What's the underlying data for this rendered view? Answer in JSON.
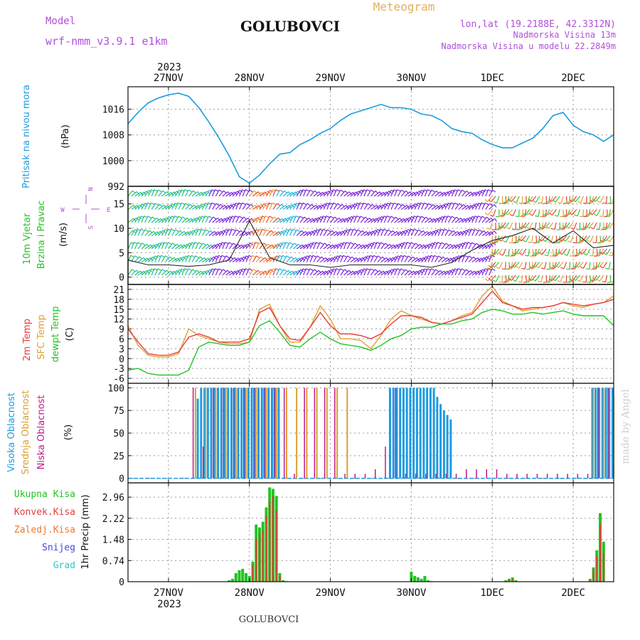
{
  "header": {
    "model_label": "Model",
    "model_name": "wrf-nmm_v3.9.1 e1km",
    "station": "GOLUBOVCI",
    "product": "Meteogram",
    "lonlat": "lon,lat (19.2188E, 42.3312N)",
    "altitude": "Nadmorska Visina 13m",
    "model_altitude": "Nadmorska Visina u modelu 22.2849m",
    "footer_station": "GOLUBOVCI",
    "watermark": "made by Angel"
  },
  "colors": {
    "pressure": "#1e9be0",
    "temp2m": "#e83c3c",
    "sfc_temp": "#e0a030",
    "dewpoint": "#22c422",
    "high_cloud": "#1e9be0",
    "mid_cloud": "#d9a030",
    "low_cloud": "#c0188c",
    "precip_total": "#22c422",
    "precip_conv": "#e83c3c",
    "precip_frozen": "#f07830",
    "snow": "#4646e6",
    "graupel": "#32c8c8",
    "wind_purple": "#7a28d8",
    "wind_cyan": "#22b4d8",
    "wind_orange": "#e8a030",
    "wind_green": "#30c83c",
    "wind_red": "#e84040"
  },
  "time_axis": {
    "day_labels": [
      "27NOV",
      "28NOV",
      "29NOV",
      "30NOV",
      "1DEC",
      "2DEC"
    ],
    "year_label": "2023",
    "start": "26NOV 12UTC",
    "end": "2DEC 12UTC"
  },
  "wind_legend": {
    "w": "W",
    "e": "E",
    "n": "N",
    "s": "S"
  },
  "chart_data": [
    {
      "type": "line",
      "title": "",
      "ylabel": "Pritisak na nivou mora",
      "unit": "(hPa)",
      "y_ticks": [
        "1016",
        "1008",
        "1000",
        "992"
      ],
      "y_tick_values": [
        1016,
        1008,
        1000,
        992
      ],
      "ylim": [
        992,
        1023
      ],
      "x_hours": [
        0,
        3,
        6,
        9,
        12,
        15,
        18,
        21,
        24,
        27,
        30,
        33,
        36,
        39,
        42,
        45,
        48,
        51,
        54,
        57,
        60,
        63,
        66,
        69,
        72,
        75,
        78,
        81,
        84,
        87,
        90,
        93,
        96,
        99,
        102,
        105,
        108,
        111,
        114,
        117,
        120,
        123,
        126,
        129,
        132,
        135,
        138,
        141,
        144
      ],
      "series": [
        {
          "name": "Pritisak na nivou mora",
          "values": [
            1011.5,
            1015,
            1018,
            1019.5,
            1020.5,
            1021,
            1020,
            1016.5,
            1012,
            1007,
            1001.5,
            995,
            993,
            995.5,
            999,
            1002,
            1002.5,
            1005,
            1006.5,
            1008.5,
            1010,
            1012.5,
            1014.5,
            1015.5,
            1016.5,
            1017.5,
            1016.5,
            1016.5,
            1016,
            1014.5,
            1014,
            1012.5,
            1010,
            1009,
            1008.5,
            1006.5,
            1005,
            1004,
            1004,
            1005.5,
            1007,
            1010,
            1014,
            1015,
            1011,
            1009,
            1008,
            1006,
            1008
          ]
        }
      ]
    },
    {
      "type": "line",
      "title": "",
      "ylabel": "10m Vjetar Brzina i Pravac",
      "unit": "(m/s)",
      "y_ticks": [
        "0",
        "5",
        "10",
        "15"
      ],
      "y_tick_values": [
        0,
        5,
        10,
        15
      ],
      "ylim": [
        -1.5,
        18.6
      ],
      "x_hours": [
        0,
        6,
        12,
        18,
        24,
        30,
        36,
        42,
        48,
        54,
        60,
        66,
        72,
        78,
        84,
        90,
        96,
        102,
        108,
        114,
        120,
        126,
        132,
        138,
        144
      ],
      "series": [
        {
          "name": "wind speed",
          "values": [
            3.5,
            2.5,
            2.5,
            2.2,
            2.5,
            3.5,
            11.5,
            4,
            2.5,
            2.5,
            2,
            2.5,
            2.5,
            2.5,
            2.5,
            2,
            3,
            5.5,
            7.5,
            8.5,
            10,
            7,
            9.5,
            6,
            6.5
          ]
        }
      ]
    },
    {
      "type": "line",
      "title": "",
      "ylabel": "2m Temp / SFC Temp / dewpt Temp",
      "unit": "(C)",
      "y_ticks": [
        "-6",
        "-3",
        "0",
        "3",
        "6",
        "9",
        "12",
        "15",
        "18",
        "21"
      ],
      "y_tick_values": [
        -6,
        -3,
        0,
        3,
        6,
        9,
        12,
        15,
        18,
        21
      ],
      "ylim": [
        -7.5,
        22.5
      ],
      "x_hours": [
        0,
        3,
        6,
        9,
        12,
        15,
        18,
        21,
        24,
        27,
        30,
        33,
        36,
        39,
        42,
        45,
        48,
        51,
        54,
        57,
        60,
        63,
        66,
        69,
        72,
        75,
        78,
        81,
        84,
        87,
        90,
        93,
        96,
        99,
        102,
        105,
        108,
        111,
        114,
        117,
        120,
        123,
        126,
        129,
        132,
        135,
        138,
        141,
        144
      ],
      "series": [
        {
          "name": "2m Temp",
          "values": [
            9,
            5,
            1.5,
            1,
            1,
            2,
            6.5,
            7.5,
            6.5,
            5,
            5,
            5,
            6,
            14,
            15.5,
            10,
            6,
            5.5,
            9.5,
            14,
            10,
            7.5,
            7.5,
            7,
            6,
            7.5,
            10.5,
            13,
            13,
            12.5,
            11,
            10.5,
            11.5,
            12.5,
            13.5,
            17,
            20.5,
            17,
            16,
            15,
            15.5,
            15.5,
            16,
            17,
            16.5,
            16,
            16.5,
            17,
            18
          ]
        },
        {
          "name": "SFC Temp",
          "values": [
            10,
            4,
            1,
            0.5,
            0.5,
            1.5,
            9,
            7,
            6,
            5,
            4.5,
            4.5,
            5,
            15,
            16.5,
            10,
            5,
            5,
            9.5,
            16,
            12,
            6,
            6,
            5.5,
            3,
            7,
            12,
            14.5,
            13,
            12,
            11,
            10.5,
            11.5,
            13,
            14,
            19,
            22,
            17.5,
            16,
            14.5,
            15,
            15.5,
            16,
            17,
            16,
            15.5,
            16.5,
            17,
            19
          ]
        },
        {
          "name": "dewpt Temp",
          "values": [
            -3.5,
            -3,
            -4.5,
            -5,
            -5,
            -5,
            -3.5,
            3.5,
            5,
            4.5,
            4,
            4,
            5,
            10,
            11.5,
            8,
            4,
            3.5,
            6,
            8,
            6,
            4.5,
            4,
            3.5,
            2.5,
            4,
            6,
            7,
            9,
            9.5,
            9.5,
            10.5,
            10.5,
            11.5,
            12,
            14,
            15,
            14.5,
            13.5,
            13.5,
            14,
            13.5,
            14,
            14.5,
            13.5,
            13,
            13,
            13,
            10
          ]
        }
      ]
    },
    {
      "type": "bar",
      "title": "",
      "ylabel": "Visoka Oblacnost / Srednja Oblacnost / Niska Oblacnost",
      "unit": "(%)",
      "y_ticks": [
        "0",
        "25",
        "50",
        "75",
        "100"
      ],
      "y_tick_values": [
        0,
        25,
        50,
        75,
        100
      ],
      "ylim": [
        -5,
        105
      ],
      "series": [
        {
          "name": "Visoka Oblacnost",
          "hours": [
            21,
            22,
            23,
            24,
            25,
            26,
            27,
            28,
            29,
            30,
            31,
            32,
            33,
            34,
            35,
            36,
            37,
            38,
            39,
            40,
            41,
            42,
            43,
            44,
            45,
            78,
            79,
            80,
            81,
            82,
            83,
            84,
            85,
            86,
            87,
            88,
            89,
            90,
            91,
            92,
            93,
            94,
            95,
            96,
            138,
            139,
            140,
            141,
            142,
            143,
            144
          ],
          "values": [
            88,
            100,
            100,
            100,
            100,
            100,
            100,
            100,
            100,
            100,
            100,
            100,
            100,
            100,
            100,
            100,
            100,
            100,
            100,
            100,
            100,
            100,
            100,
            100,
            100,
            100,
            100,
            100,
            100,
            100,
            100,
            100,
            100,
            100,
            100,
            100,
            100,
            100,
            100,
            90,
            82,
            75,
            70,
            65,
            100,
            100,
            100,
            100,
            100,
            100,
            100
          ]
        },
        {
          "name": "Srednja Oblacnost",
          "hours": [
            20,
            23,
            26,
            29,
            32,
            35,
            38,
            41,
            44,
            47,
            50,
            53,
            56,
            59,
            62,
            65,
            138,
            141,
            144
          ],
          "values": [
            100,
            100,
            100,
            100,
            100,
            100,
            100,
            100,
            100,
            100,
            100,
            100,
            100,
            100,
            100,
            100,
            100,
            100,
            92
          ]
        },
        {
          "name": "Niska Oblacnost",
          "hours": [
            19,
            22,
            25,
            28,
            31,
            34,
            37,
            40,
            43,
            46,
            49,
            52,
            55,
            58,
            61,
            64,
            67,
            70,
            73,
            76,
            79,
            82,
            85,
            88,
            91,
            94,
            97,
            100,
            103,
            106,
            109,
            112,
            115,
            118,
            121,
            124,
            127,
            130,
            133,
            136,
            139,
            142
          ],
          "values": [
            100,
            35,
            100,
            100,
            100,
            100,
            100,
            100,
            100,
            100,
            5,
            100,
            100,
            100,
            100,
            5,
            5,
            5,
            10,
            35,
            100,
            5,
            5,
            5,
            5,
            5,
            5,
            10,
            10,
            10,
            10,
            5,
            5,
            5,
            5,
            5,
            5,
            5,
            5,
            5,
            100,
            100
          ]
        }
      ]
    },
    {
      "type": "bar",
      "title": "",
      "ylabel": "1hr Precip",
      "unit": "(mm)",
      "y_ticks": [
        "0",
        "0.74",
        "1.48",
        "2.22",
        "2.96"
      ],
      "y_tick_values": [
        0,
        0.74,
        1.48,
        2.22,
        2.96
      ],
      "ylim": [
        0,
        3.46
      ],
      "series": [
        {
          "name": "Ukupna Kisa",
          "hours": [
            30,
            31,
            32,
            33,
            34,
            35,
            36,
            37,
            38,
            39,
            40,
            41,
            42,
            43,
            44,
            45,
            46,
            47,
            48,
            84,
            85,
            86,
            87,
            88,
            89,
            90,
            112,
            113,
            114,
            115,
            137,
            138,
            139,
            140,
            141
          ],
          "values": [
            0.05,
            0.1,
            0.3,
            0.4,
            0.45,
            0.3,
            0.2,
            0.7,
            2,
            1.9,
            2.1,
            2.6,
            3.3,
            3.25,
            3,
            0.3,
            0.05,
            0.02,
            0.01,
            0.35,
            0.2,
            0.15,
            0.1,
            0.2,
            0.05,
            0.02,
            0.05,
            0.1,
            0.15,
            0.05,
            0.1,
            0.5,
            1.1,
            2.4,
            1.4
          ]
        },
        {
          "name": "Konvek.Kisa",
          "hours": [
            37,
            38,
            39,
            40,
            41,
            42,
            43,
            44,
            45,
            113,
            114,
            137,
            138,
            139,
            140,
            141
          ],
          "values": [
            0.6,
            1.5,
            1.7,
            1.8,
            2.3,
            2.8,
            3,
            2.5,
            0.2,
            0.1,
            0.1,
            0.05,
            0.4,
            0.9,
            2,
            1
          ]
        }
      ]
    }
  ],
  "legend_labels": {
    "precip": [
      "Ukupna Kisa",
      "Konvek.Kisa",
      "Zaledj.Kisa",
      "Snijeg",
      "Grad"
    ],
    "cloud": [
      "Visoka Oblacnost",
      "Srednja Oblacnost",
      "Niska Oblacnost"
    ],
    "temp": [
      "2m Temp",
      "SFC Temp",
      "dewpt Temp"
    ],
    "wind": [
      "10m Vjetar",
      "Brzina i Pravac"
    ]
  }
}
